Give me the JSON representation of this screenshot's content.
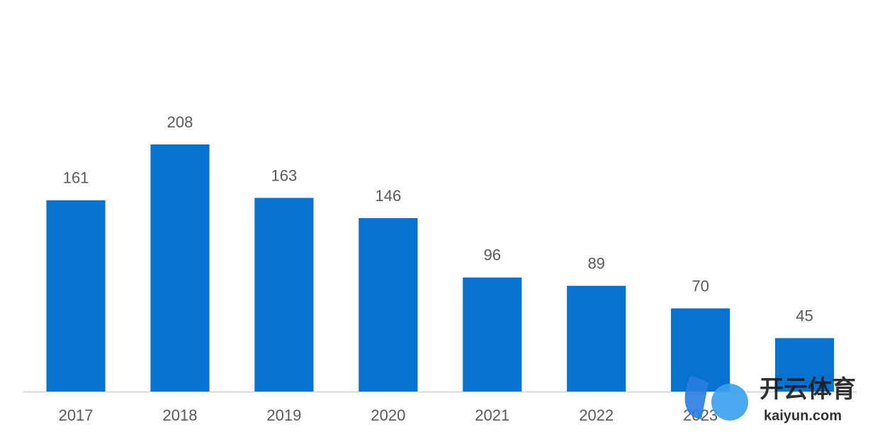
{
  "chart_data": {
    "type": "bar",
    "categories": [
      "2017",
      "2018",
      "2019",
      "2020",
      "2021",
      "2022",
      "2023",
      null
    ],
    "values": [
      161,
      208,
      163,
      146,
      96,
      89,
      70,
      45
    ],
    "color": "#0872d1",
    "ylim": [
      0,
      250
    ]
  },
  "watermark": {
    "brand": "开云体育",
    "site": "kaiyun.com"
  }
}
